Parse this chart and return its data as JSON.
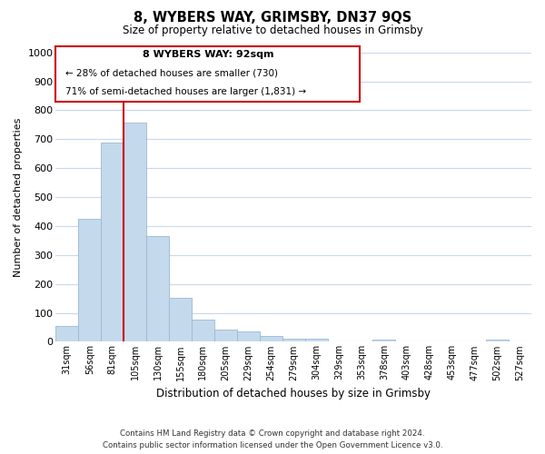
{
  "title": "8, WYBERS WAY, GRIMSBY, DN37 9QS",
  "subtitle": "Size of property relative to detached houses in Grimsby",
  "xlabel": "Distribution of detached houses by size in Grimsby",
  "ylabel": "Number of detached properties",
  "bar_labels": [
    "31sqm",
    "56sqm",
    "81sqm",
    "105sqm",
    "130sqm",
    "155sqm",
    "180sqm",
    "205sqm",
    "229sqm",
    "254sqm",
    "279sqm",
    "304sqm",
    "329sqm",
    "353sqm",
    "378sqm",
    "403sqm",
    "428sqm",
    "453sqm",
    "477sqm",
    "502sqm",
    "527sqm"
  ],
  "bar_values": [
    53,
    425,
    688,
    758,
    365,
    153,
    75,
    42,
    35,
    20,
    12,
    10,
    0,
    0,
    8,
    0,
    0,
    0,
    0,
    8,
    0
  ],
  "bar_color": "#c5d9ec",
  "bar_edge_color": "#9ab8d4",
  "vline_bar_index": 2,
  "vline_color": "#cc0000",
  "ylim": [
    0,
    1000
  ],
  "yticks": [
    0,
    100,
    200,
    300,
    400,
    500,
    600,
    700,
    800,
    900,
    1000
  ],
  "annotation_title": "8 WYBERS WAY: 92sqm",
  "annotation_line1": "← 28% of detached houses are smaller (730)",
  "annotation_line2": "71% of semi-detached houses are larger (1,831) →",
  "footer_line1": "Contains HM Land Registry data © Crown copyright and database right 2024.",
  "footer_line2": "Contains public sector information licensed under the Open Government Licence v3.0.",
  "background_color": "#ffffff",
  "grid_color": "#c8d8ec"
}
